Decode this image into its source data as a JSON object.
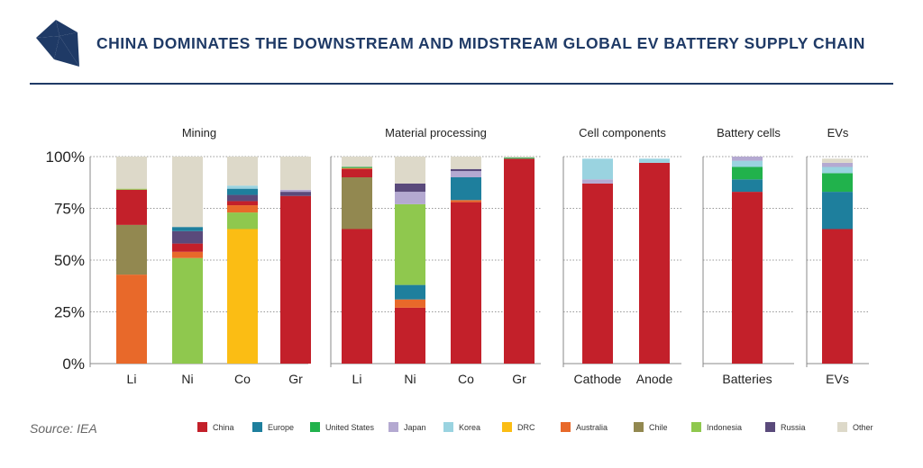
{
  "header": {
    "title": "CHINA DOMINATES THE DOWNSTREAM AND MIDSTREAM GLOBAL EV BATTERY SUPPLY CHAIN",
    "logo_icon": "triangles-logo-icon"
  },
  "source": "Source: IEA",
  "colors": {
    "China": "#c3202a",
    "Europe": "#1e7f9d",
    "United States": "#21b24c",
    "Japan": "#b4a9d1",
    "Korea": "#9ad3e0",
    "DRC": "#fbbd14",
    "Australia": "#e8692a",
    "Chile": "#928850",
    "Indonesia": "#8fc84e",
    "Russia": "#5a4a7b",
    "Other": "#ddd9c9"
  },
  "legend": [
    "China",
    "Europe",
    "United States",
    "Japan",
    "Korea",
    "DRC",
    "Australia",
    "Chile",
    "Indonesia",
    "Russia",
    "Other"
  ],
  "chart_data": {
    "type": "bar",
    "stacked": true,
    "ylim": [
      0,
      100
    ],
    "yticks": [
      "0%",
      "25%",
      "50%",
      "75%",
      "100%"
    ],
    "ytick_values": [
      0,
      25,
      50,
      75,
      100
    ],
    "groups": [
      {
        "title": "Mining",
        "bars": [
          {
            "label": "Li",
            "segments": [
              [
                "Australia",
                43
              ],
              [
                "Chile",
                24
              ],
              [
                "China",
                17
              ],
              [
                "Indonesia",
                0.5
              ],
              [
                "Other",
                15.5
              ]
            ]
          },
          {
            "label": "Ni",
            "segments": [
              [
                "Indonesia",
                51
              ],
              [
                "Australia",
                3
              ],
              [
                "China",
                4
              ],
              [
                "Russia",
                6
              ],
              [
                "Europe",
                2
              ],
              [
                "Other",
                34
              ]
            ]
          },
          {
            "label": "Co",
            "segments": [
              [
                "DRC",
                65
              ],
              [
                "Indonesia",
                8
              ],
              [
                "Australia",
                3.5
              ],
              [
                "China",
                2
              ],
              [
                "Russia",
                3
              ],
              [
                "Europe",
                3
              ],
              [
                "Korea",
                1.5
              ],
              [
                "Other",
                14
              ]
            ]
          },
          {
            "label": "Gr",
            "segments": [
              [
                "China",
                81
              ],
              [
                "Russia",
                2
              ],
              [
                "Japan",
                1
              ],
              [
                "Other",
                16
              ]
            ]
          }
        ]
      },
      {
        "title": "Material processing",
        "bars": [
          {
            "label": "Li",
            "segments": [
              [
                "China",
                65
              ],
              [
                "Chile",
                25
              ],
              [
                "China",
                4
              ],
              [
                "Australia",
                0.5
              ],
              [
                "United States",
                0.5
              ],
              [
                "Other",
                5
              ]
            ]
          },
          {
            "label": "Ni",
            "segments": [
              [
                "China",
                27
              ],
              [
                "Australia",
                4
              ],
              [
                "Europe",
                7
              ],
              [
                "Indonesia",
                39
              ],
              [
                "Japan",
                6
              ],
              [
                "Russia",
                4
              ],
              [
                "Other",
                13
              ]
            ]
          },
          {
            "label": "Co",
            "segments": [
              [
                "China",
                78
              ],
              [
                "Australia",
                1
              ],
              [
                "Europe",
                11
              ],
              [
                "Japan",
                3
              ],
              [
                "Russia",
                1
              ],
              [
                "Other",
                6
              ]
            ]
          },
          {
            "label": "Gr",
            "segments": [
              [
                "China",
                99
              ],
              [
                "United States",
                0.5
              ],
              [
                "Other",
                0.5
              ]
            ]
          }
        ]
      },
      {
        "title": "Cell components",
        "bars": [
          {
            "label": "Cathode",
            "segments": [
              [
                "China",
                87
              ],
              [
                "Japan",
                2
              ],
              [
                "Korea",
                10
              ]
            ]
          },
          {
            "label": "Anode",
            "segments": [
              [
                "China",
                97
              ],
              [
                "Korea",
                2
              ]
            ]
          }
        ]
      },
      {
        "title": "Battery cells",
        "bars": [
          {
            "label": "Batteries",
            "segments": [
              [
                "China",
                83
              ],
              [
                "Europe",
                6
              ],
              [
                "United States",
                6
              ],
              [
                "Korea",
                3
              ],
              [
                "Japan",
                2
              ]
            ]
          }
        ]
      },
      {
        "title": "EVs",
        "bars": [
          {
            "label": "EVs",
            "segments": [
              [
                "China",
                65
              ],
              [
                "Europe",
                18
              ],
              [
                "United States",
                9
              ],
              [
                "Korea",
                3
              ],
              [
                "Japan",
                2
              ],
              [
                "Other",
                2
              ]
            ]
          }
        ]
      }
    ]
  }
}
